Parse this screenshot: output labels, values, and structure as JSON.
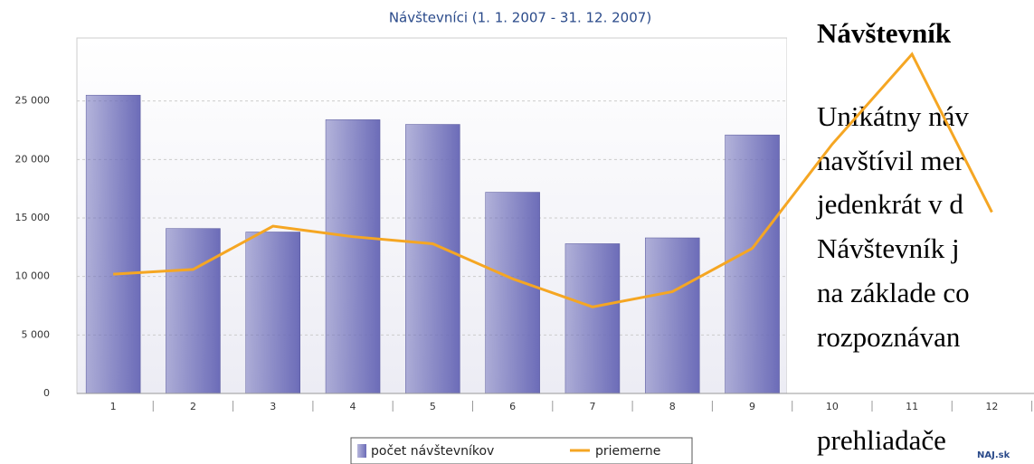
{
  "chart_data": {
    "type": "bar",
    "title": "Návštevníci (1. 1. 2007 - 31. 12. 2007)",
    "categories": [
      "1",
      "2",
      "3",
      "4",
      "5",
      "6",
      "7",
      "8",
      "9",
      "10",
      "11",
      "12"
    ],
    "series": [
      {
        "name": "počet návštevníkov",
        "type": "bar",
        "color": "#6c6cb8",
        "values": [
          25500,
          14100,
          13800,
          23400,
          23000,
          17200,
          12800,
          13300,
          22100,
          null,
          null,
          null
        ]
      },
      {
        "name": "priemerne",
        "type": "line",
        "color": "#f5a623",
        "values": [
          10200,
          10600,
          14300,
          13400,
          12800,
          9800,
          7400,
          8700,
          12400,
          21300,
          29000,
          15500
        ]
      }
    ],
    "ylim": [
      0,
      30000
    ],
    "yticks": [
      0,
      {
        "value": 5000,
        "label": "5 000"
      },
      {
        "value": 10000,
        "label": "10 000"
      },
      {
        "value": 15000,
        "label": "15 000"
      },
      {
        "value": 20000,
        "label": "20 000"
      },
      {
        "value": 25000,
        "label": "25 000"
      }
    ],
    "grid": true
  },
  "text": {
    "heading": "Návštevník",
    "lines": [
      "Unikátny náv",
      "navštívil mer",
      "jedenkrát v d",
      "Návštevník j",
      "na základe co",
      "rozpoznávan",
      "prehliadače"
    ],
    "logo": "NAJ.sk"
  }
}
